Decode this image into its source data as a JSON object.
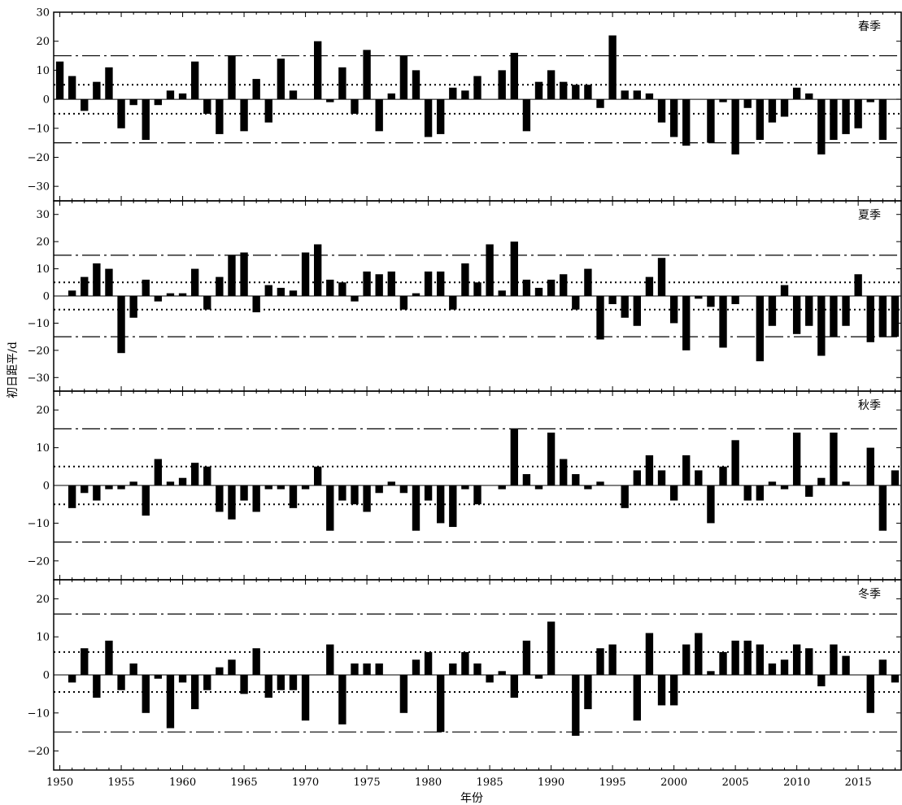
{
  "chart_data": {
    "type": "bar",
    "ylabel": "初日距平/d",
    "xlabel": "年份",
    "x_start": 1950,
    "x_end": 2018,
    "xticks": [
      1950,
      1955,
      1960,
      1965,
      1970,
      1975,
      1980,
      1985,
      1990,
      1995,
      2000,
      2005,
      2010,
      2015
    ],
    "bar_color": "#000000",
    "panels": [
      {
        "name": "春季",
        "ylim": [
          -35,
          30
        ],
        "yticks": [
          -30,
          -20,
          -10,
          0,
          10,
          20,
          30
        ],
        "dotted_lines": [
          5,
          -5
        ],
        "dashdot_lines": [
          15,
          -15
        ],
        "years": [
          1950,
          1951,
          1952,
          1953,
          1954,
          1955,
          1956,
          1957,
          1958,
          1959,
          1960,
          1961,
          1962,
          1963,
          1964,
          1965,
          1966,
          1967,
          1968,
          1969,
          1970,
          1971,
          1972,
          1973,
          1974,
          1975,
          1976,
          1977,
          1978,
          1979,
          1980,
          1981,
          1982,
          1983,
          1984,
          1985,
          1986,
          1987,
          1988,
          1989,
          1990,
          1991,
          1992,
          1993,
          1994,
          1995,
          1996,
          1997,
          1998,
          1999,
          2000,
          2001,
          2002,
          2003,
          2004,
          2005,
          2006,
          2007,
          2008,
          2009,
          2010,
          2011,
          2012,
          2013,
          2014,
          2015,
          2016,
          2017,
          2018
        ],
        "values": [
          13,
          8,
          -4,
          6,
          11,
          -10,
          -2,
          -14,
          -2,
          3,
          2,
          13,
          -5,
          -12,
          15,
          -11,
          7,
          -8,
          14,
          3,
          0,
          20,
          -1,
          11,
          -5,
          17,
          -11,
          2,
          15,
          10,
          -13,
          -12,
          4,
          3,
          8,
          0,
          10,
          16,
          -11,
          6,
          10,
          6,
          5,
          5,
          -3,
          22,
          3,
          3,
          2,
          -8,
          -13,
          -16,
          0,
          -15,
          -1,
          -19,
          -3,
          -14,
          -8,
          -6,
          4,
          2,
          -19,
          -14,
          -12,
          -10,
          -1,
          -14,
          0
        ]
      },
      {
        "name": "夏季",
        "ylim": [
          -35,
          35
        ],
        "yticks": [
          -30,
          -20,
          -10,
          0,
          10,
          20,
          30
        ],
        "dotted_lines": [
          5,
          -5
        ],
        "dashdot_lines": [
          15,
          -15
        ],
        "years": [
          1951,
          1952,
          1953,
          1954,
          1955,
          1956,
          1957,
          1958,
          1959,
          1960,
          1961,
          1962,
          1963,
          1964,
          1965,
          1966,
          1967,
          1968,
          1969,
          1970,
          1971,
          1972,
          1973,
          1974,
          1975,
          1976,
          1977,
          1978,
          1979,
          1980,
          1981,
          1982,
          1983,
          1984,
          1985,
          1986,
          1987,
          1988,
          1989,
          1990,
          1991,
          1992,
          1993,
          1994,
          1995,
          1996,
          1997,
          1998,
          1999,
          2000,
          2001,
          2002,
          2003,
          2004,
          2005,
          2006,
          2007,
          2008,
          2009,
          2010,
          2011,
          2012,
          2013,
          2014,
          2015,
          2016,
          2017,
          2018
        ],
        "values": [
          2,
          7,
          12,
          10,
          -21,
          -8,
          6,
          -2,
          1,
          1,
          10,
          -5,
          7,
          15,
          16,
          -6,
          4,
          3,
          2,
          16,
          19,
          6,
          5,
          -2,
          9,
          8,
          9,
          -5,
          1,
          9,
          9,
          -5,
          12,
          5,
          19,
          2,
          20,
          6,
          3,
          6,
          8,
          -5,
          10,
          -16,
          -3,
          -8,
          -11,
          7,
          14,
          -10,
          -20,
          -1,
          -4,
          -19,
          -3,
          0,
          -24,
          -11,
          4,
          -14,
          -11,
          -22,
          -15,
          -11,
          8,
          -17,
          -15,
          -15
        ]
      },
      {
        "name": "秋季",
        "ylim": [
          -25,
          25
        ],
        "yticks": [
          -20,
          -10,
          0,
          10,
          20
        ],
        "dotted_lines": [
          5,
          -5
        ],
        "dashdot_lines": [
          15,
          -15
        ],
        "years": [
          1951,
          1952,
          1953,
          1954,
          1955,
          1956,
          1957,
          1958,
          1959,
          1960,
          1961,
          1962,
          1963,
          1964,
          1965,
          1966,
          1967,
          1968,
          1969,
          1970,
          1971,
          1972,
          1973,
          1974,
          1975,
          1976,
          1977,
          1978,
          1979,
          1980,
          1981,
          1982,
          1983,
          1984,
          1985,
          1986,
          1987,
          1988,
          1989,
          1990,
          1991,
          1992,
          1993,
          1994,
          1995,
          1996,
          1997,
          1998,
          1999,
          2000,
          2001,
          2002,
          2003,
          2004,
          2005,
          2006,
          2007,
          2008,
          2009,
          2010,
          2011,
          2012,
          2013,
          2014,
          2015,
          2016,
          2017,
          2018
        ],
        "values": [
          -6,
          -2,
          -4,
          -1,
          -1,
          1,
          -8,
          7,
          1,
          2,
          6,
          5,
          -7,
          -9,
          -4,
          -7,
          -1,
          -1,
          -6,
          -1,
          5,
          -12,
          -4,
          -5,
          -7,
          -2,
          1,
          -2,
          -12,
          -4,
          -10,
          -11,
          -1,
          -5,
          0,
          -1,
          15,
          3,
          -1,
          14,
          7,
          3,
          -1,
          1,
          0,
          -6,
          4,
          8,
          4,
          -4,
          8,
          4,
          -10,
          5,
          12,
          -4,
          -4,
          1,
          -1,
          14,
          -3,
          2,
          14,
          1,
          0,
          10,
          -12,
          4
        ]
      },
      {
        "name": "冬季",
        "ylim": [
          -25,
          25
        ],
        "yticks": [
          -20,
          -10,
          0,
          10,
          20
        ],
        "dotted_lines": [
          6,
          -4.5
        ],
        "dashdot_lines": [
          16,
          -15
        ],
        "years": [
          1951,
          1952,
          1953,
          1954,
          1955,
          1956,
          1957,
          1958,
          1959,
          1960,
          1961,
          1962,
          1963,
          1964,
          1965,
          1966,
          1967,
          1968,
          1969,
          1970,
          1971,
          1972,
          1973,
          1974,
          1975,
          1976,
          1977,
          1978,
          1979,
          1980,
          1981,
          1982,
          1983,
          1984,
          1985,
          1986,
          1987,
          1988,
          1989,
          1990,
          1991,
          1992,
          1993,
          1994,
          1995,
          1996,
          1997,
          1998,
          1999,
          2000,
          2001,
          2002,
          2003,
          2004,
          2005,
          2006,
          2007,
          2008,
          2009,
          2010,
          2011,
          2012,
          2013,
          2014,
          2015,
          2016,
          2017,
          2018
        ],
        "values": [
          -2,
          7,
          -6,
          9,
          -4,
          3,
          -10,
          -1,
          -14,
          -2,
          -9,
          -4,
          2,
          4,
          -5,
          7,
          -6,
          -4,
          -4,
          -12,
          0,
          8,
          -13,
          3,
          3,
          3,
          0,
          -10,
          4,
          6,
          -15,
          3,
          6,
          3,
          -2,
          1,
          -6,
          9,
          -1,
          14,
          0,
          -16,
          -9,
          7,
          8,
          0,
          -12,
          11,
          -8,
          -8,
          8,
          11,
          1,
          6,
          9,
          9,
          8,
          3,
          4,
          8,
          7,
          -3,
          8,
          5,
          0,
          -10,
          4,
          -2
        ]
      }
    ]
  }
}
